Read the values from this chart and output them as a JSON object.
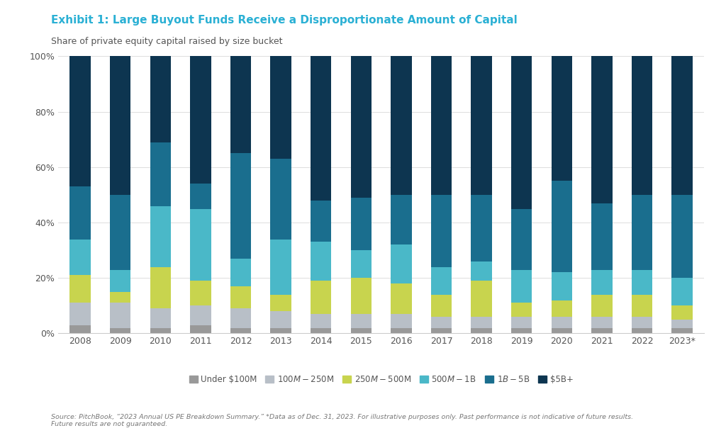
{
  "title": "Exhibit 1: Large Buyout Funds Receive a Disproportionate Amount of Capital",
  "subtitle": "Share of private equity capital raised by size bucket",
  "source_text": "Source: PitchBook, “2023 Annual US PE Breakdown Summary.” *Data as of Dec. 31, 2023. For illustrative purposes only. Past performance is not indicative of future results.\nFuture results are not guaranteed.",
  "years": [
    "2008",
    "2009",
    "2010",
    "2011",
    "2012",
    "2013",
    "2014",
    "2015",
    "2016",
    "2017",
    "2018",
    "2019",
    "2020",
    "2021",
    "2022",
    "2023*"
  ],
  "categories": [
    "Under $100M",
    "$100M-$250M",
    "$250M-$500M",
    "$500M-$1B",
    "$1B-$5B",
    "$5B+"
  ],
  "colors": [
    "#999999",
    "#b8bfc7",
    "#c8d44e",
    "#4ab8c8",
    "#1a6e8e",
    "#0d3550"
  ],
  "data": {
    "Under $100M": [
      3,
      2,
      2,
      3,
      2,
      2,
      2,
      2,
      2,
      2,
      2,
      2,
      2,
      2,
      2,
      2
    ],
    "$100M-$250M": [
      8,
      9,
      7,
      7,
      7,
      6,
      5,
      5,
      5,
      4,
      4,
      4,
      4,
      4,
      4,
      3
    ],
    "$250M-$500M": [
      10,
      4,
      15,
      9,
      8,
      6,
      12,
      13,
      11,
      8,
      13,
      5,
      6,
      8,
      8,
      5
    ],
    "$500M-$1B": [
      13,
      8,
      22,
      26,
      10,
      20,
      14,
      10,
      14,
      10,
      7,
      12,
      10,
      9,
      9,
      10
    ],
    "$1B-$5B": [
      19,
      27,
      23,
      9,
      38,
      29,
      15,
      19,
      18,
      26,
      24,
      22,
      33,
      24,
      27,
      30
    ],
    "$5B+": [
      47,
      50,
      31,
      46,
      35,
      37,
      52,
      51,
      50,
      50,
      50,
      55,
      45,
      53,
      50,
      50
    ]
  },
  "background_color": "#ffffff",
  "title_color": "#2ab0d4",
  "subtitle_color": "#555555",
  "axis_color": "#555555",
  "grid_color": "#dddddd",
  "ylim": [
    0,
    100
  ],
  "yticks": [
    0,
    20,
    40,
    60,
    80,
    100
  ],
  "ytick_labels": [
    "0%",
    "20%",
    "40%",
    "60%",
    "80%",
    "100%"
  ]
}
